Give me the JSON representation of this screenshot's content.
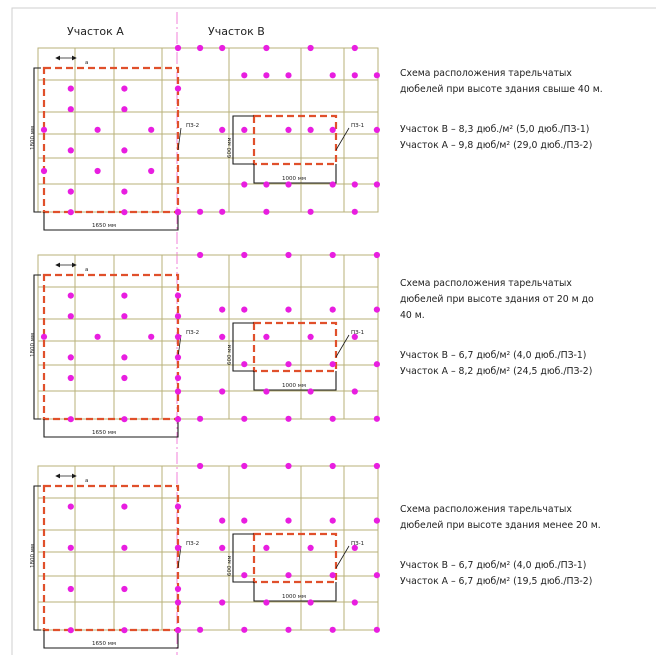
{
  "colors": {
    "dowel": "#e81ee0",
    "grid": "#b9b27a",
    "zone_outline": "#e0502b",
    "separator": "#f080d8"
  },
  "headers": {
    "zone_a": "Участок А",
    "zone_b": "Участок В"
  },
  "labels": {
    "spacing_a": "a",
    "dim_height": "1800 мм",
    "dim_width": "1650 мм",
    "dim_600": "600 мм",
    "dim_1000": "1000 мм",
    "pz2": "ПЗ-2",
    "pz1": "ПЗ-1"
  },
  "schemes": [
    {
      "description": [
        "Схема расположения тарельчатых",
        "дюбелей при высоте здания свыше 40 м."
      ],
      "zone_b": "Участок В – 8,3 дюб./м² (5,0 дюб./ПЗ-1)",
      "zone_a": "Участок А – 9,8 дюб/м² (29,0 дюб./ПЗ-2)",
      "dowels_a": [
        [
          1,
          1
        ],
        [
          1,
          3
        ],
        [
          1,
          5
        ],
        [
          2,
          1
        ],
        [
          2,
          3
        ],
        [
          3,
          0
        ],
        [
          3,
          2
        ],
        [
          3,
          4
        ],
        [
          4,
          1
        ],
        [
          4,
          3
        ],
        [
          5,
          0
        ],
        [
          5,
          2
        ],
        [
          5,
          4
        ],
        [
          6,
          1
        ],
        [
          6,
          3
        ],
        [
          7,
          1
        ],
        [
          7,
          3
        ],
        [
          7,
          5
        ]
      ],
      "dowels_b": [
        [
          0,
          0
        ],
        [
          0,
          1
        ],
        [
          0,
          2
        ],
        [
          0,
          4
        ],
        [
          0,
          6
        ],
        [
          0,
          8
        ],
        [
          1,
          3
        ],
        [
          1,
          4
        ],
        [
          1,
          5
        ],
        [
          1,
          7
        ],
        [
          1,
          8
        ],
        [
          1,
          9
        ],
        [
          3,
          2
        ],
        [
          3,
          3
        ],
        [
          3,
          5
        ],
        [
          3,
          6
        ],
        [
          3,
          7
        ],
        [
          3,
          9
        ],
        [
          5,
          3
        ],
        [
          5,
          4
        ],
        [
          5,
          5
        ],
        [
          5,
          7
        ],
        [
          5,
          8
        ],
        [
          5,
          9
        ],
        [
          6,
          0
        ],
        [
          6,
          1
        ],
        [
          6,
          2
        ],
        [
          6,
          4
        ],
        [
          6,
          6
        ],
        [
          6,
          8
        ]
      ]
    },
    {
      "description": [
        "Схема расположения тарельчатых",
        "дюбелей при высоте здания от 20 м до",
        "40 м."
      ],
      "zone_b": "Участок В – 6,7 дюб/м² (4,0 дюб./ПЗ-1)",
      "zone_a": "Участок А – 8,2 дюб/м² (24,5 дюб./ПЗ-2)",
      "dowels_a": [
        [
          1,
          1
        ],
        [
          1,
          3
        ],
        [
          1,
          5
        ],
        [
          2,
          1
        ],
        [
          2,
          3
        ],
        [
          2,
          5
        ],
        [
          3,
          0
        ],
        [
          3,
          2
        ],
        [
          3,
          4
        ],
        [
          4,
          1
        ],
        [
          4,
          3
        ],
        [
          4,
          5
        ],
        [
          5,
          1
        ],
        [
          5,
          3
        ],
        [
          5,
          5
        ],
        [
          7,
          1
        ],
        [
          7,
          3
        ],
        [
          7,
          5
        ]
      ],
      "dowels_b": [
        [
          0,
          1
        ],
        [
          0,
          3
        ],
        [
          0,
          5
        ],
        [
          0,
          7
        ],
        [
          0,
          9
        ],
        [
          2,
          2
        ],
        [
          2,
          3
        ],
        [
          2,
          5
        ],
        [
          2,
          7
        ],
        [
          2,
          9
        ],
        [
          3,
          0
        ],
        [
          3,
          2
        ],
        [
          3,
          4
        ],
        [
          3,
          6
        ],
        [
          3,
          8
        ],
        [
          4,
          3
        ],
        [
          4,
          5
        ],
        [
          4,
          7
        ],
        [
          4,
          9
        ],
        [
          5,
          0
        ],
        [
          5,
          2
        ],
        [
          5,
          4
        ],
        [
          5,
          6
        ],
        [
          5,
          8
        ],
        [
          6,
          1
        ],
        [
          6,
          3
        ],
        [
          6,
          5
        ],
        [
          6,
          7
        ],
        [
          6,
          9
        ]
      ]
    },
    {
      "description": [
        "Схема расположения тарельчатых",
        "дюбелей при высоте здания менее 20 м."
      ],
      "zone_b": "Участок В – 6,7 дюб/м² (4,0 дюб./ПЗ-1)",
      "zone_a": "Участок А – 6,7 дюб/м² (19,5 дюб./ПЗ-2)",
      "dowels_a": [
        [
          1,
          1
        ],
        [
          1,
          3
        ],
        [
          1,
          5
        ],
        [
          3,
          1
        ],
        [
          3,
          3
        ],
        [
          3,
          5
        ],
        [
          5,
          1
        ],
        [
          5,
          3
        ],
        [
          5,
          5
        ],
        [
          7,
          1
        ],
        [
          7,
          3
        ],
        [
          7,
          5
        ]
      ],
      "dowels_b": [
        [
          0,
          1
        ],
        [
          0,
          3
        ],
        [
          0,
          5
        ],
        [
          0,
          7
        ],
        [
          0,
          9
        ],
        [
          2,
          2
        ],
        [
          2,
          3
        ],
        [
          2,
          5
        ],
        [
          2,
          7
        ],
        [
          2,
          9
        ],
        [
          3,
          0
        ],
        [
          3,
          2
        ],
        [
          3,
          4
        ],
        [
          3,
          6
        ],
        [
          3,
          8
        ],
        [
          4,
          3
        ],
        [
          4,
          5
        ],
        [
          4,
          7
        ],
        [
          4,
          9
        ],
        [
          5,
          0
        ],
        [
          5,
          2
        ],
        [
          5,
          4
        ],
        [
          5,
          6
        ],
        [
          5,
          8
        ],
        [
          6,
          1
        ],
        [
          6,
          3
        ],
        [
          6,
          5
        ],
        [
          6,
          7
        ],
        [
          6,
          9
        ]
      ]
    }
  ]
}
